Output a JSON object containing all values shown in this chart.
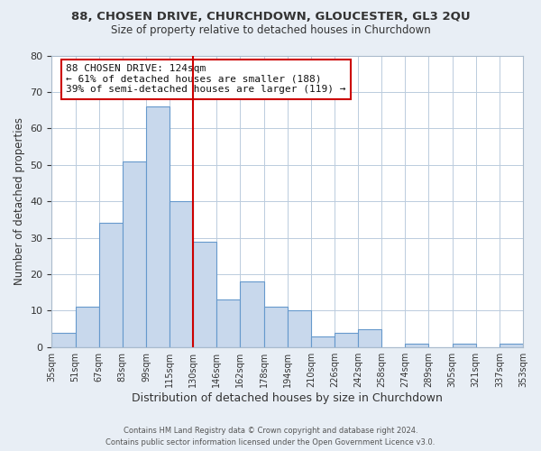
{
  "title": "88, CHOSEN DRIVE, CHURCHDOWN, GLOUCESTER, GL3 2QU",
  "subtitle": "Size of property relative to detached houses in Churchdown",
  "xlabel": "Distribution of detached houses by size in Churchdown",
  "ylabel": "Number of detached properties",
  "footer_line1": "Contains HM Land Registry data © Crown copyright and database right 2024.",
  "footer_line2": "Contains public sector information licensed under the Open Government Licence v3.0.",
  "bar_labels": [
    "35sqm",
    "51sqm",
    "67sqm",
    "83sqm",
    "99sqm",
    "115sqm",
    "130sqm",
    "146sqm",
    "162sqm",
    "178sqm",
    "194sqm",
    "210sqm",
    "226sqm",
    "242sqm",
    "258sqm",
    "274sqm",
    "289sqm",
    "305sqm",
    "321sqm",
    "337sqm",
    "353sqm"
  ],
  "bar_values": [
    4,
    11,
    34,
    51,
    66,
    40,
    29,
    13,
    18,
    11,
    10,
    3,
    4,
    5,
    0,
    1,
    0,
    1,
    0,
    1
  ],
  "bar_color": "#c8d8ec",
  "bar_edge_color": "#6699cc",
  "reference_line_x": 5.5,
  "reference_line_color": "#cc0000",
  "annotation_title": "88 CHOSEN DRIVE: 124sqm",
  "annotation_line1": "← 61% of detached houses are smaller (188)",
  "annotation_line2": "39% of semi-detached houses are larger (119) →",
  "annotation_box_facecolor": "#ffffff",
  "annotation_box_edgecolor": "#cc0000",
  "ylim": [
    0,
    80
  ],
  "yticks": [
    0,
    10,
    20,
    30,
    40,
    50,
    60,
    70,
    80
  ],
  "bg_color": "#e8eef5",
  "plot_bg_color": "#ffffff",
  "grid_color": "#bbccdd"
}
